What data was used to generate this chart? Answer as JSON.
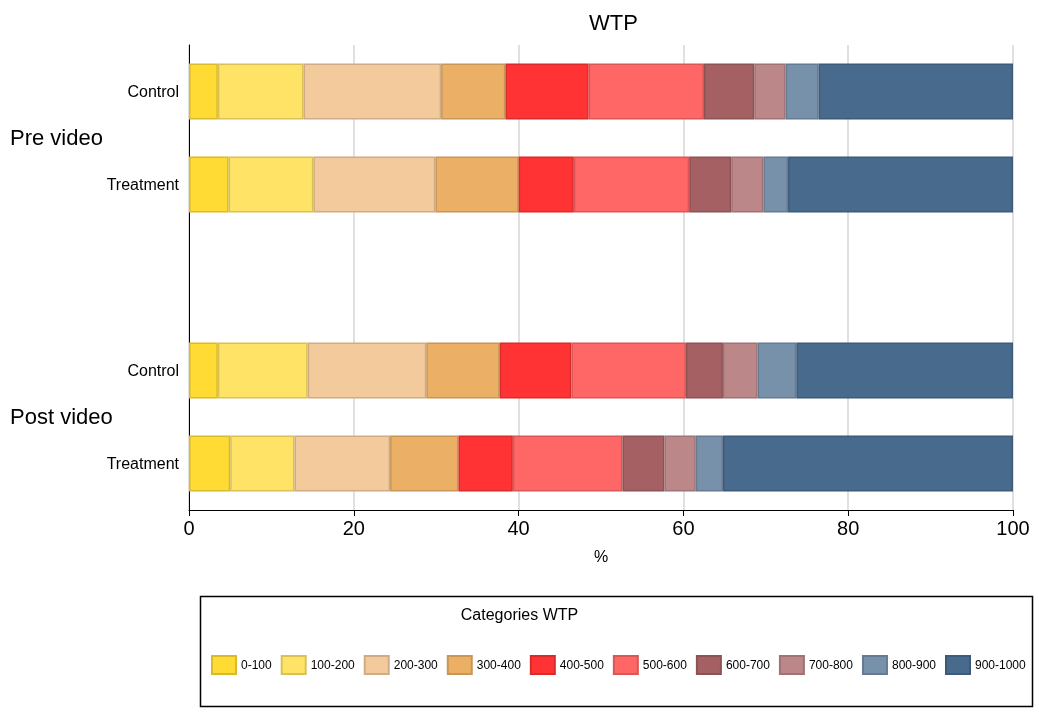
{
  "chart_data": {
    "type": "bar",
    "orientation": "horizontal",
    "stacked": true,
    "title": "WTP",
    "xlabel": "%",
    "legend_title": "Categories WTP",
    "categories": [
      "Control",
      "Treatment",
      null,
      "Control",
      "Treatment"
    ],
    "annotations": [
      "Pre video",
      "Post video"
    ],
    "series": [
      {
        "name": "0-100",
        "color": "#ffdb33",
        "values": [
          3.5,
          4.8,
          null,
          3.5,
          5.0
        ]
      },
      {
        "name": "100-200",
        "color": "#ffe366",
        "values": [
          10.4,
          10.3,
          null,
          10.9,
          7.8
        ]
      },
      {
        "name": "200-300",
        "color": "#f3ca9c",
        "values": [
          16.7,
          14.8,
          null,
          14.4,
          11.6
        ]
      },
      {
        "name": "300-400",
        "color": "#ebb066",
        "values": [
          7.8,
          10.1,
          null,
          8.9,
          8.3
        ]
      },
      {
        "name": "400-500",
        "color": "#ff3333",
        "values": [
          10.1,
          6.7,
          null,
          8.7,
          6.6
        ]
      },
      {
        "name": "500-600",
        "color": "#ff6666",
        "values": [
          14.0,
          14.0,
          null,
          13.9,
          13.3
        ]
      },
      {
        "name": "600-700",
        "color": "#a56063",
        "values": [
          6.1,
          5.1,
          null,
          4.5,
          5.1
        ]
      },
      {
        "name": "700-800",
        "color": "#bc8789",
        "values": [
          3.8,
          3.9,
          null,
          4.2,
          3.8
        ]
      },
      {
        "name": "800-900",
        "color": "#7891aa",
        "values": [
          4.0,
          3.0,
          null,
          4.7,
          3.3
        ]
      },
      {
        "name": "900-1000",
        "color": "#486b8d",
        "values": [
          23.6,
          27.3,
          null,
          26.3,
          35.2
        ]
      }
    ],
    "xlim": [
      0,
      100
    ],
    "xticks": [
      0,
      20,
      40,
      60,
      80,
      100
    ],
    "grid": "x",
    "legend": "bottom"
  }
}
